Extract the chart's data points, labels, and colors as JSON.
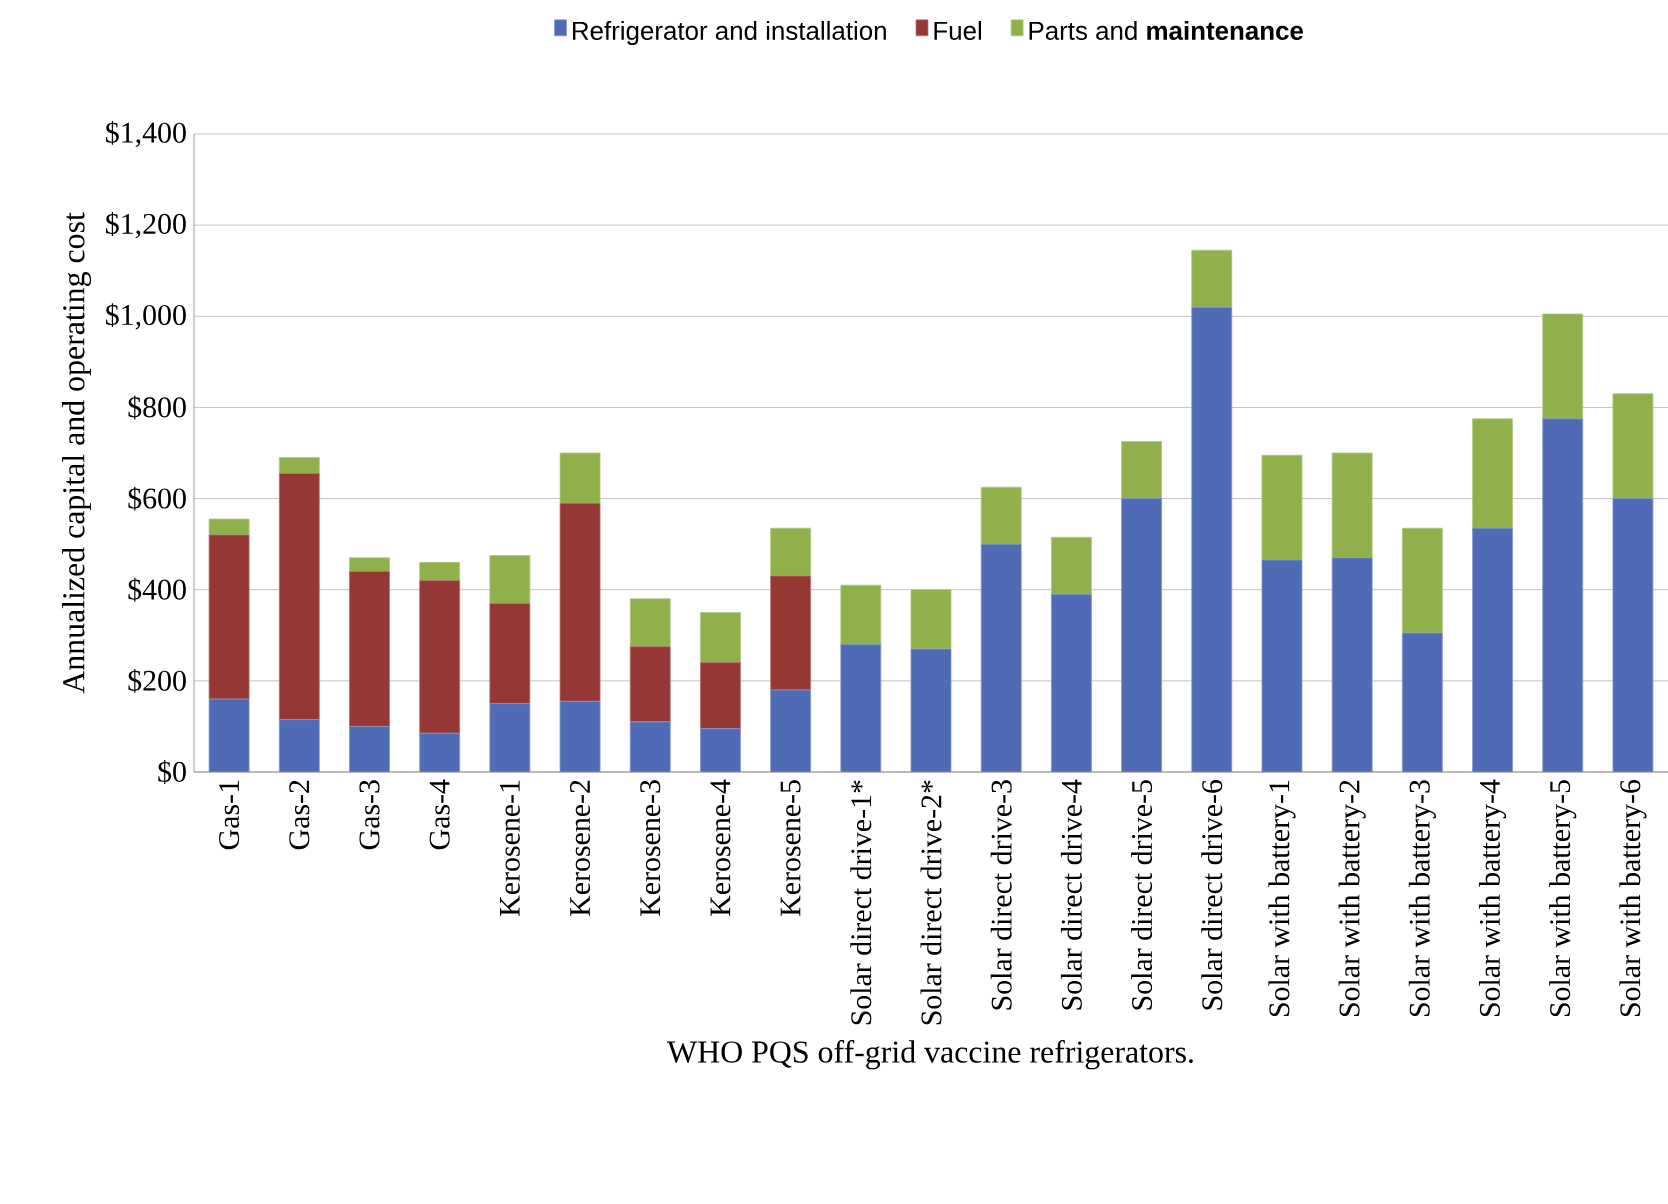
{
  "chart_data": {
    "type": "bar",
    "stacked": true,
    "xlabel": "WHO PQS off-grid vaccine refrigerators.",
    "ylabel": "Annualized capital and operating cost",
    "categories": [
      "Gas-1",
      "Gas-2",
      "Gas-3",
      "Gas-4",
      "Kerosene-1",
      "Kerosene-2",
      "Kerosene-3",
      "Kerosene-4",
      "Kerosene-5",
      "Solar direct drive-1*",
      "Solar direct drive-2*",
      "Solar direct drive-3",
      "Solar direct drive-4",
      "Solar direct drive-5",
      "Solar direct drive-6",
      "Solar with battery-1",
      "Solar with battery-2",
      "Solar with battery-3",
      "Solar with battery-4",
      "Solar with battery-5",
      "Solar with battery-6"
    ],
    "series": [
      {
        "name": "Refrigerator and installation",
        "color": "#4f6bb5",
        "values": [
          160,
          115,
          100,
          85,
          150,
          155,
          110,
          95,
          180,
          280,
          270,
          500,
          390,
          600,
          1020,
          465,
          470,
          305,
          535,
          775,
          600
        ]
      },
      {
        "name": "Fuel",
        "color": "#953735",
        "values": [
          360,
          540,
          340,
          335,
          220,
          435,
          165,
          145,
          250,
          0,
          0,
          0,
          0,
          0,
          0,
          0,
          0,
          0,
          0,
          0,
          0
        ]
      },
      {
        "name": "Parts and **maintenance**",
        "color": "#8fb04a",
        "values": [
          35,
          35,
          30,
          40,
          105,
          110,
          105,
          110,
          105,
          130,
          130,
          125,
          125,
          125,
          125,
          230,
          230,
          230,
          240,
          230,
          230
        ]
      }
    ],
    "ylim": [
      0,
      1400
    ],
    "yticks": [
      {
        "value": 0,
        "label": "$0"
      },
      {
        "value": 200,
        "label": "$200"
      },
      {
        "value": 400,
        "label": "$400"
      },
      {
        "value": 600,
        "label": "$600"
      },
      {
        "value": 800,
        "label": "$800"
      },
      {
        "value": 1000,
        "label": "$1,000"
      },
      {
        "value": 1200,
        "label": "$1,200"
      },
      {
        "value": 1400,
        "label": "$1,400"
      }
    ],
    "grid": "y",
    "legend": "top"
  }
}
